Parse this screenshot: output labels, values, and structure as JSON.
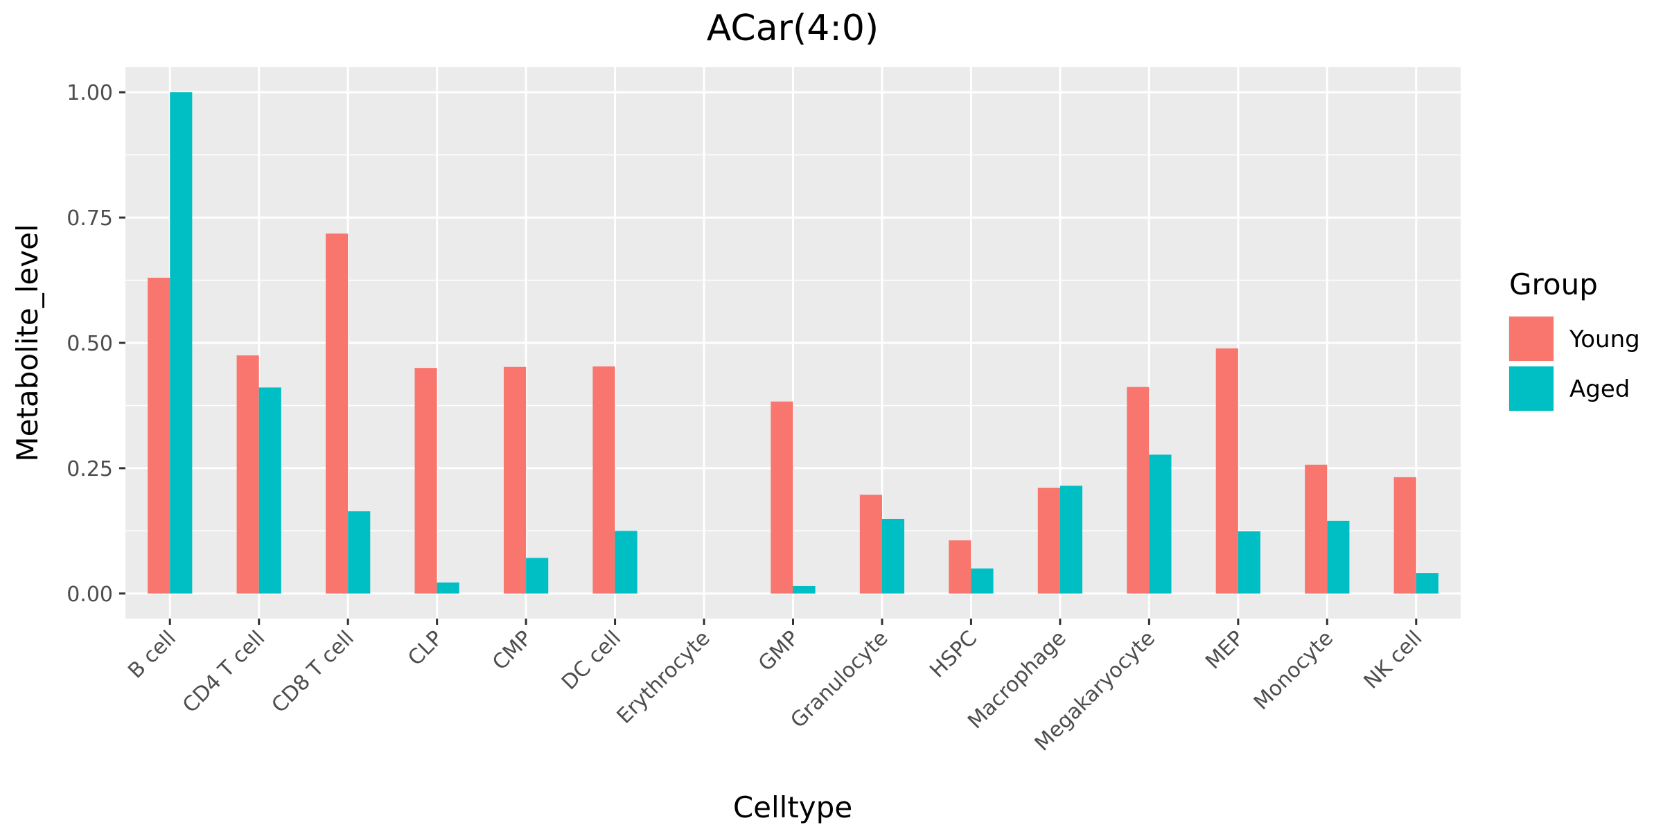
{
  "chart_data": {
    "type": "bar",
    "title": "ACar(4:0)",
    "xlabel": "Celltype",
    "ylabel": "Metabolite_level",
    "categories": [
      "B cell",
      "CD4 T cell",
      "CD8 T cell",
      "CLP",
      "CMP",
      "DC cell",
      "Erythrocyte",
      "GMP",
      "Granulocyte",
      "HSPC",
      "Macrophage",
      "Megakaryocyte",
      "MEP",
      "Monocyte",
      "NK cell"
    ],
    "series": [
      {
        "name": "Young",
        "color": "#F8766D",
        "values": [
          0.63,
          0.475,
          0.718,
          0.45,
          0.452,
          0.453,
          0.0,
          0.383,
          0.197,
          0.106,
          0.211,
          0.412,
          0.489,
          0.257,
          0.232
        ]
      },
      {
        "name": "Aged",
        "color": "#00BFC4",
        "values": [
          1.0,
          0.411,
          0.164,
          0.022,
          0.071,
          0.125,
          0.0,
          0.015,
          0.149,
          0.05,
          0.215,
          0.277,
          0.124,
          0.145,
          0.041
        ]
      }
    ],
    "ylim": [
      -0.05,
      1.05
    ],
    "yticks": [
      "0.00",
      "0.25",
      "0.50",
      "0.75",
      "1.00"
    ],
    "ytick_values": [
      0,
      0.25,
      0.5,
      0.75,
      1.0
    ],
    "legend": {
      "title": "Group",
      "position": "right"
    },
    "grid": true,
    "panel_background": "#EBEBEB",
    "grid_color": "#FFFFFF"
  }
}
